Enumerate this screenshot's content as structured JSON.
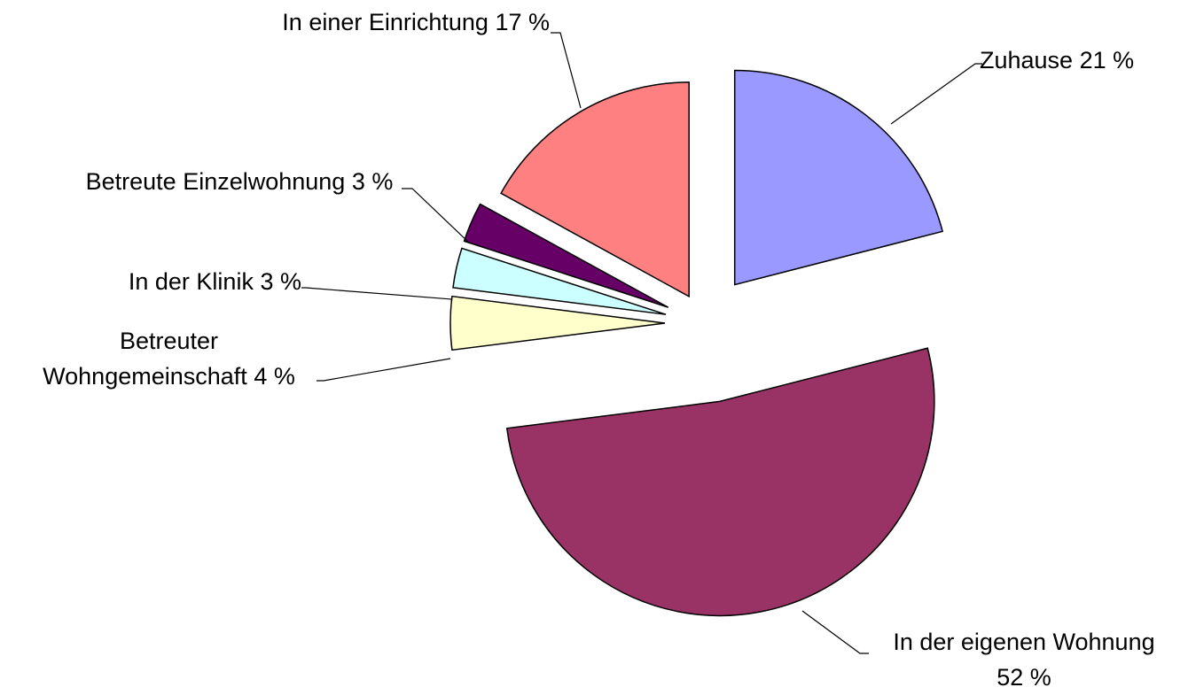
{
  "chart_data": {
    "type": "pie",
    "categories": [
      "Zuhause",
      "In der eigenen Wohnung",
      "Betreuter Wohngemeinschaft",
      "In der Klinik",
      "Betreute Einzelwohnung",
      "In einer Einrichtung"
    ],
    "values": [
      21,
      52,
      4,
      3,
      3,
      17
    ],
    "value_labels": [
      "21 %",
      "52 %",
      "4 %",
      "3 %",
      "3 %",
      "17 %"
    ],
    "colors": [
      "#9999ff",
      "#993366",
      "#ffffcc",
      "#ccffff",
      "#660066",
      "#ff8080"
    ]
  }
}
